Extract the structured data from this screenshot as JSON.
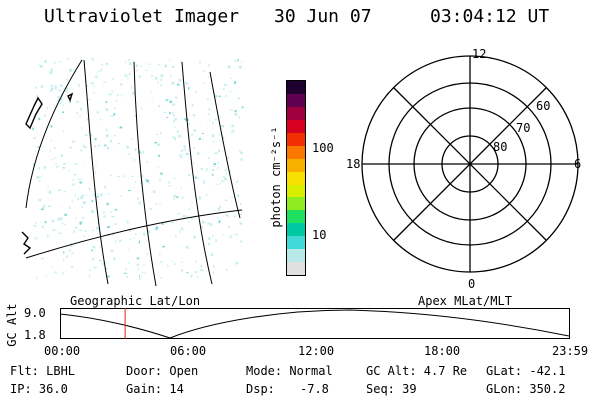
{
  "header": {
    "instrument": "Ultraviolet Imager",
    "date": "30 Jun 07",
    "time": "03:04:12 UT"
  },
  "colorbar": {
    "unit_label": "photon cm⁻²s⁻¹",
    "ticks": [
      "100",
      "10"
    ],
    "colors": [
      "#e0e0e0",
      "#b8e8e8",
      "#40d8d8",
      "#00c8a0",
      "#20e060",
      "#90ec20",
      "#d8f000",
      "#f8e000",
      "#f8b000",
      "#f87800",
      "#f03000",
      "#d80020",
      "#a00040",
      "#600050",
      "#200030"
    ]
  },
  "polar": {
    "mlt_labels": {
      "top": "12",
      "right": "6",
      "bottom": "0",
      "left": "18"
    },
    "lat_labels": [
      "60",
      "70",
      "80"
    ]
  },
  "timeline": {
    "left_label": "Geographic Lat/Lon",
    "right_label": "Apex MLat/MLT",
    "axis_label": "GC Alt",
    "y_max": "9.0",
    "y_min": "1.8",
    "x_ticks": [
      "00:00",
      "06:00",
      "12:00",
      "18:00",
      "23:59"
    ],
    "current_hour": 3.07
  },
  "status": {
    "flt": "Flt: LBHL",
    "ip": "IP: 36.0",
    "door": "Door: Open",
    "gain": "Gain: 14",
    "mode": "Mode: Normal",
    "dsp": "Dsp:",
    "dsp_value": "-7.8",
    "gc_alt": "GC Alt: 4.7 Re",
    "seq": "Seq: 39",
    "glat": "GLat: -42.1",
    "glon": "GLon: 350.2"
  }
}
